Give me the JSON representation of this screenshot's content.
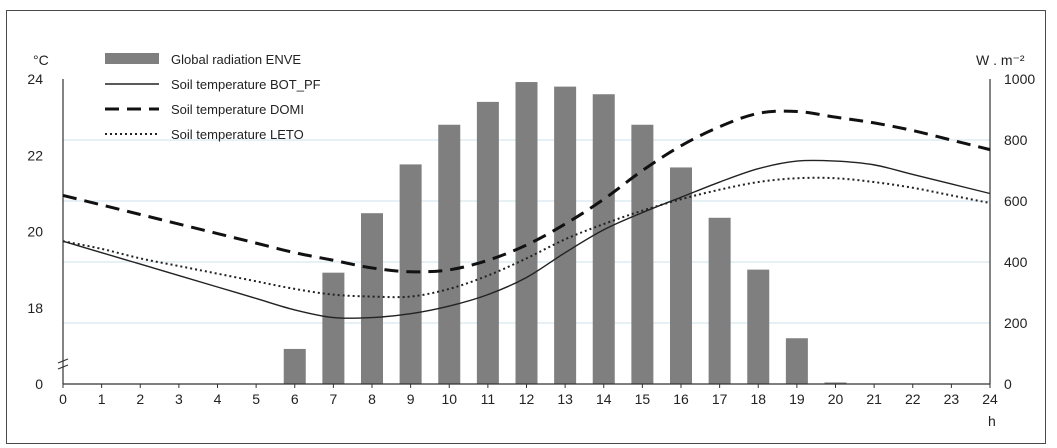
{
  "chart_data": {
    "type": "bar",
    "title": "",
    "xlabel": "h",
    "ylabel_left": "°C",
    "ylabel_right": "W . m⁻²",
    "x": [
      0,
      1,
      2,
      3,
      4,
      5,
      6,
      7,
      8,
      9,
      10,
      11,
      12,
      13,
      14,
      15,
      16,
      17,
      18,
      19,
      20,
      21,
      22,
      23,
      24
    ],
    "x_ticks": [
      "0",
      "1",
      "2",
      "3",
      "4",
      "5",
      "6",
      "7",
      "8",
      "9",
      "10",
      "11",
      "12",
      "13",
      "14",
      "15",
      "16",
      "17",
      "18",
      "19",
      "20",
      "21",
      "22",
      "23",
      "24"
    ],
    "y_left_ticks": [
      "0",
      "18",
      "20",
      "22",
      "24"
    ],
    "y_right_ticks": [
      "0",
      "200",
      "400",
      "600",
      "800",
      "1000"
    ],
    "ylim_right": [
      0,
      1000
    ],
    "ylim_left": [
      16,
      24
    ],
    "left_axis_break": true,
    "grid": true,
    "legend_position": "top-left",
    "series": [
      {
        "name": "Global radiation ENVE",
        "kind": "bar",
        "axis": "right",
        "color": "#7f7f7f",
        "x": [
          6,
          7,
          8,
          9,
          10,
          11,
          12,
          13,
          14,
          15,
          16,
          17,
          18,
          19,
          20
        ],
        "values": [
          115,
          365,
          560,
          720,
          850,
          925,
          990,
          975,
          950,
          850,
          710,
          545,
          375,
          150,
          5
        ]
      },
      {
        "name": "Soil temperature BOT_PF",
        "kind": "line",
        "style": "solid",
        "axis": "left",
        "color": "#222222",
        "x": [
          0,
          1,
          2,
          3,
          4,
          5,
          6,
          7,
          8,
          9,
          10,
          11,
          12,
          13,
          14,
          15,
          16,
          17,
          18,
          19,
          20,
          21,
          22,
          23,
          24
        ],
        "values": [
          19.75,
          19.45,
          19.15,
          18.85,
          18.55,
          18.25,
          17.95,
          17.75,
          17.75,
          17.85,
          18.05,
          18.35,
          18.8,
          19.45,
          20.05,
          20.5,
          20.9,
          21.3,
          21.65,
          21.85,
          21.85,
          21.75,
          21.5,
          21.25,
          21.0
        ]
      },
      {
        "name": "Soil temperature DOMI",
        "kind": "line",
        "style": "dashed",
        "axis": "left",
        "color": "#111111",
        "x": [
          0,
          1,
          2,
          3,
          4,
          5,
          6,
          7,
          8,
          9,
          10,
          11,
          12,
          13,
          14,
          15,
          16,
          17,
          18,
          19,
          20,
          21,
          22,
          23,
          24
        ],
        "values": [
          20.95,
          20.7,
          20.45,
          20.2,
          19.95,
          19.7,
          19.45,
          19.25,
          19.05,
          18.95,
          19.0,
          19.25,
          19.65,
          20.2,
          20.85,
          21.6,
          22.25,
          22.75,
          23.1,
          23.15,
          23.0,
          22.85,
          22.65,
          22.4,
          22.15
        ]
      },
      {
        "name": "Soil temperature LETO",
        "kind": "line",
        "style": "dotted",
        "axis": "left",
        "color": "#222222",
        "x": [
          0,
          1,
          2,
          3,
          4,
          5,
          6,
          7,
          8,
          9,
          10,
          11,
          12,
          13,
          14,
          15,
          16,
          17,
          18,
          19,
          20,
          21,
          22,
          23,
          24
        ],
        "values": [
          19.75,
          19.55,
          19.3,
          19.1,
          18.9,
          18.7,
          18.5,
          18.35,
          18.3,
          18.3,
          18.5,
          18.85,
          19.3,
          19.8,
          20.2,
          20.55,
          20.85,
          21.1,
          21.3,
          21.4,
          21.4,
          21.3,
          21.15,
          20.95,
          20.75
        ]
      }
    ]
  }
}
